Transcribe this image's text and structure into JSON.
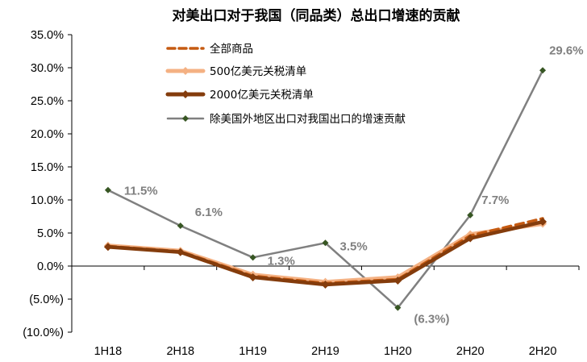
{
  "chart_data": {
    "type": "line",
    "title": "对美出口对于我国（同品类）总出口增速的贡献",
    "categories": [
      "1H18",
      "2H18",
      "1H19",
      "2H19",
      "1H20",
      "2H20",
      "2H20"
    ],
    "ylim": [
      -10,
      35
    ],
    "yticks": [
      "35.0%",
      "30.0%",
      "25.0%",
      "20.0%",
      "15.0%",
      "10.0%",
      "5.0%",
      "0.0%",
      "(5.0%)",
      "(10.0%)"
    ],
    "grid": false,
    "legend_position": "top",
    "series": [
      {
        "name": "全部商品",
        "values": [
          3.0,
          2.2,
          -1.5,
          -2.6,
          -2.0,
          4.6,
          7.2
        ],
        "color": "#C55A11",
        "style": "dashed"
      },
      {
        "name": "500亿美元关税清单",
        "values": [
          3.1,
          2.3,
          -1.3,
          -2.4,
          -1.7,
          4.8,
          6.4
        ],
        "color": "#F4B183",
        "style": "solid-thick-diamond"
      },
      {
        "name": "2000亿美元关税清单",
        "values": [
          2.9,
          2.1,
          -1.7,
          -2.8,
          -2.2,
          4.2,
          6.7
        ],
        "color": "#843C0C",
        "style": "solid-thick-diamond"
      },
      {
        "name": "除美国外地区出口对我国出口的增速贡献",
        "values": [
          11.5,
          6.1,
          1.3,
          3.5,
          -6.3,
          7.7,
          29.6
        ],
        "color": "#808080",
        "marker_color": "#375623",
        "style": "solid-diamond"
      }
    ],
    "data_labels": [
      "11.5%",
      "6.1%",
      "1.3%",
      "3.5%",
      "(6.3%)",
      "7.7%",
      "29.6%"
    ]
  }
}
